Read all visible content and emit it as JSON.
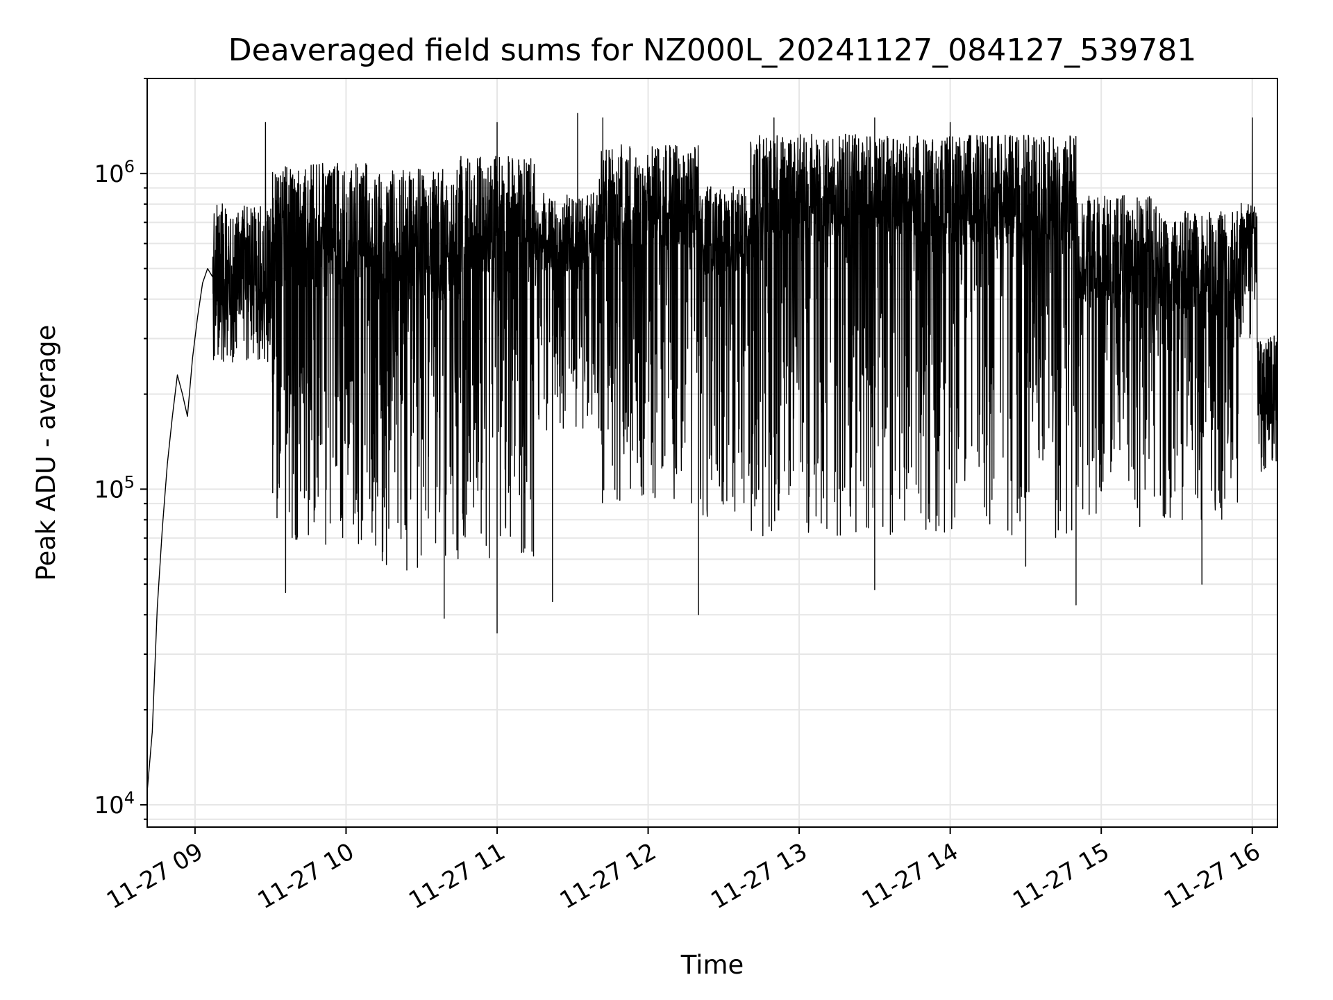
{
  "chart_data": {
    "type": "line",
    "title": "Deaveraged field sums for NZ000L_20241127_084127_539781",
    "xlabel": "Time",
    "ylabel": "Peak ADU - average",
    "yscale": "log",
    "grid": true,
    "line_color": "#000000",
    "grid_color": "#e6e6e6",
    "xlim": [
      "2024-11-27 08:41",
      "2024-11-27 16:10"
    ],
    "ylim": [
      8500,
      2000000
    ],
    "x_ticks": [
      {
        "t": "2024-11-27 09:00",
        "label": "11-27 09"
      },
      {
        "t": "2024-11-27 10:00",
        "label": "11-27 10"
      },
      {
        "t": "2024-11-27 11:00",
        "label": "11-27 11"
      },
      {
        "t": "2024-11-27 12:00",
        "label": "11-27 12"
      },
      {
        "t": "2024-11-27 13:00",
        "label": "11-27 13"
      },
      {
        "t": "2024-11-27 14:00",
        "label": "11-27 14"
      },
      {
        "t": "2024-11-27 15:00",
        "label": "11-27 15"
      },
      {
        "t": "2024-11-27 16:00",
        "label": "11-27 16"
      }
    ],
    "y_ticks": [
      {
        "value": 10000,
        "base": "10",
        "exp": "4"
      },
      {
        "value": 100000,
        "base": "10",
        "exp": "5"
      },
      {
        "value": 1000000,
        "base": "10",
        "exp": "6"
      }
    ],
    "series": [
      {
        "x": [
          "2024-11-27 08:41",
          "2024-11-27 08:43",
          "2024-11-27 08:45",
          "2024-11-27 08:47",
          "2024-11-27 08:49",
          "2024-11-27 08:51",
          "2024-11-27 08:53",
          "2024-11-27 08:55",
          "2024-11-27 08:57",
          "2024-11-27 08:59",
          "2024-11-27 09:01",
          "2024-11-27 09:03",
          "2024-11-27 09:05",
          "2024-11-27 09:07"
        ],
        "y": [
          11000,
          17000,
          42000,
          75000,
          120000,
          170000,
          230000,
          200000,
          170000,
          260000,
          350000,
          450000,
          500000,
          470000
        ]
      }
    ],
    "noisy_segments": [
      {
        "start": "2024-11-27 09:07",
        "end": "2024-11-27 09:30",
        "high": 850000,
        "mid": 450000,
        "low": 250000
      },
      {
        "start": "2024-11-27 09:30",
        "end": "2024-11-27 10:12",
        "high": 1150000,
        "mid": 600000,
        "low": 65000
      },
      {
        "start": "2024-11-27 10:12",
        "end": "2024-11-27 10:45",
        "high": 1100000,
        "mid": 550000,
        "low": 55000
      },
      {
        "start": "2024-11-27 10:45",
        "end": "2024-11-27 11:15",
        "high": 1200000,
        "mid": 650000,
        "low": 60000
      },
      {
        "start": "2024-11-27 11:15",
        "end": "2024-11-27 11:40",
        "high": 900000,
        "mid": 600000,
        "low": 150000
      },
      {
        "start": "2024-11-27 11:40",
        "end": "2024-11-27 12:20",
        "high": 1300000,
        "mid": 750000,
        "low": 90000
      },
      {
        "start": "2024-11-27 12:20",
        "end": "2024-11-27 12:40",
        "high": 950000,
        "mid": 600000,
        "low": 80000
      },
      {
        "start": "2024-11-27 12:40",
        "end": "2024-11-27 14:50",
        "high": 1400000,
        "mid": 800000,
        "low": 70000
      },
      {
        "start": "2024-11-27 14:50",
        "end": "2024-11-27 15:25",
        "high": 900000,
        "mid": 500000,
        "low": 75000
      },
      {
        "start": "2024-11-27 15:25",
        "end": "2024-11-27 15:55",
        "high": 800000,
        "mid": 450000,
        "low": 80000
      },
      {
        "start": "2024-11-27 15:55",
        "end": "2024-11-27 16:02",
        "high": 850000,
        "mid": 650000,
        "low": 300000
      },
      {
        "start": "2024-11-27 16:02",
        "end": "2024-11-27 16:10",
        "high": 320000,
        "mid": 200000,
        "low": 110000
      }
    ],
    "dips": [
      {
        "t": "2024-11-27 09:36",
        "y": 47000
      },
      {
        "t": "2024-11-27 10:39",
        "y": 39000
      },
      {
        "t": "2024-11-27 11:00",
        "y": 35000
      },
      {
        "t": "2024-11-27 11:22",
        "y": 44000
      },
      {
        "t": "2024-11-27 12:20",
        "y": 40000
      },
      {
        "t": "2024-11-27 13:30",
        "y": 48000
      },
      {
        "t": "2024-11-27 14:30",
        "y": 57000
      },
      {
        "t": "2024-11-27 14:50",
        "y": 43000
      },
      {
        "t": "2024-11-27 15:40",
        "y": 50000
      }
    ],
    "spikes": [
      {
        "t": "2024-11-27 09:28",
        "y": 1450000
      },
      {
        "t": "2024-11-27 11:00",
        "y": 1450000
      },
      {
        "t": "2024-11-27 11:32",
        "y": 1550000
      },
      {
        "t": "2024-11-27 11:42",
        "y": 1500000
      },
      {
        "t": "2024-11-27 12:50",
        "y": 1500000
      },
      {
        "t": "2024-11-27 13:30",
        "y": 1500000
      },
      {
        "t": "2024-11-27 14:00",
        "y": 1450000
      },
      {
        "t": "2024-11-27 16:00",
        "y": 1500000
      }
    ]
  }
}
